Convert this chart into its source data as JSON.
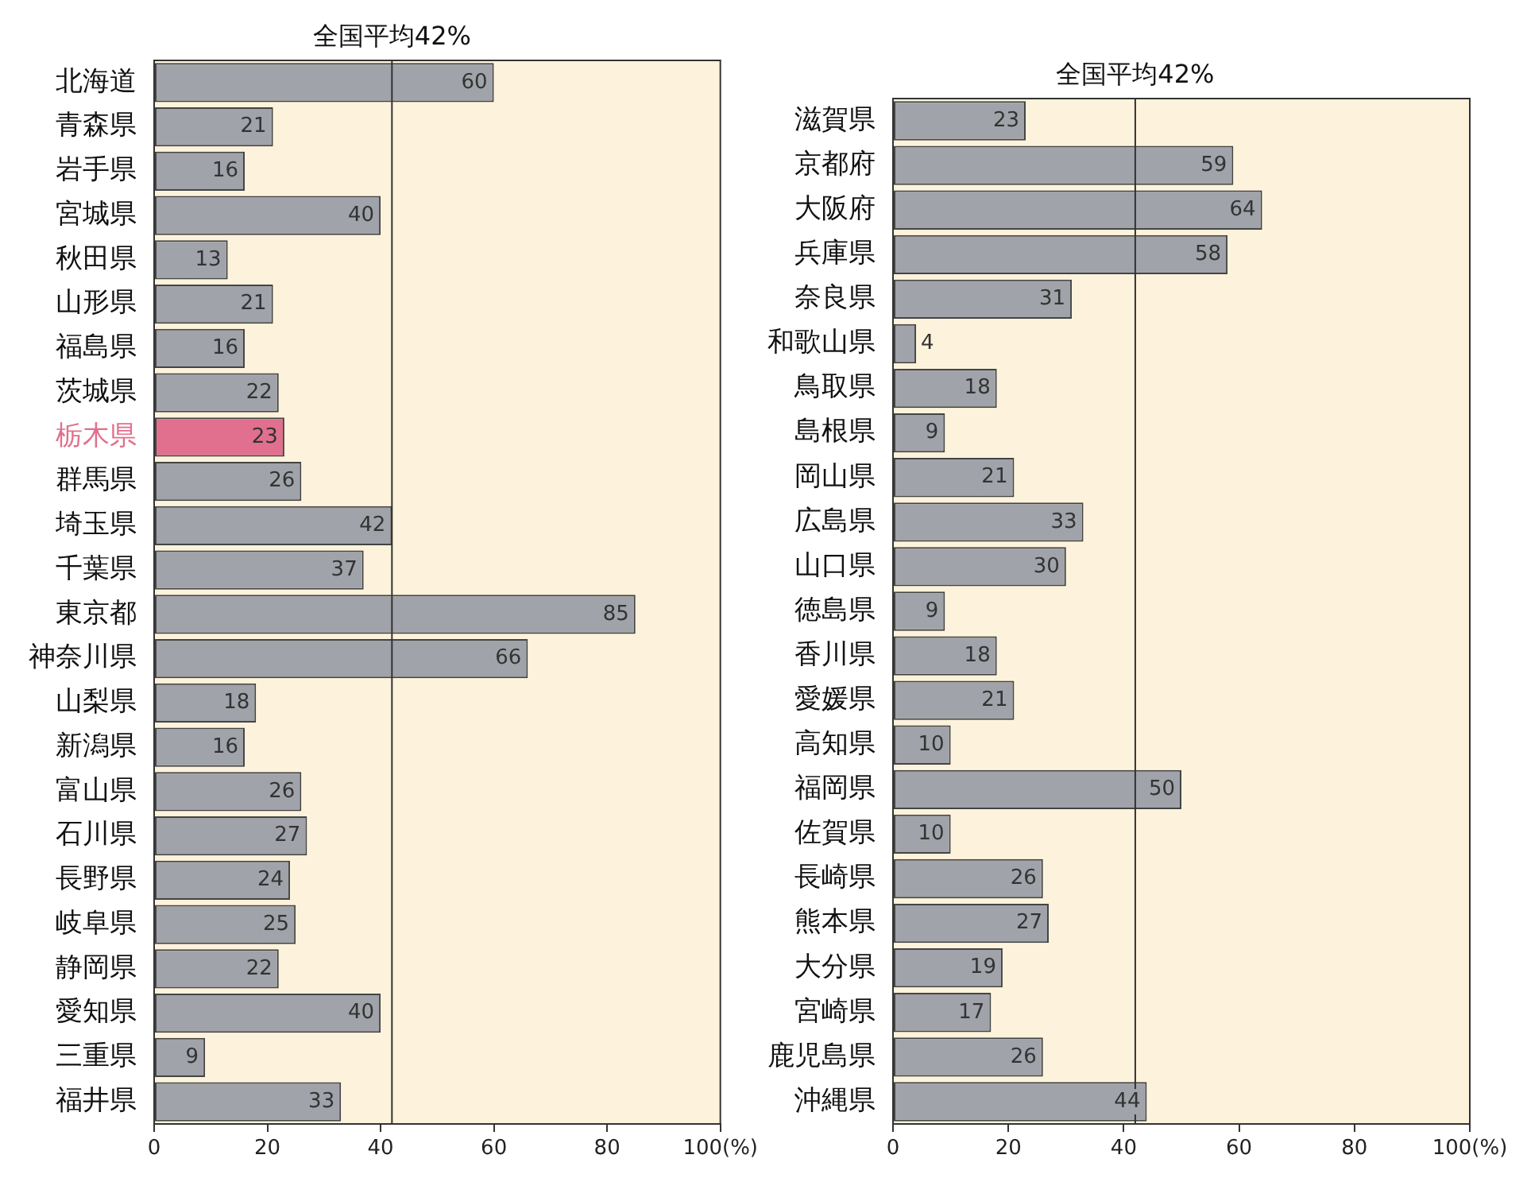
{
  "chart_data": [
    {
      "type": "bar",
      "orientation": "horizontal",
      "categories": [
        "北海道",
        "青森県",
        "岩手県",
        "宮城県",
        "秋田県",
        "山形県",
        "福島県",
        "茨城県",
        "栃木県",
        "群馬県",
        "埼玉県",
        "千葉県",
        "東京都",
        "神奈川県",
        "山梨県",
        "新潟県",
        "富山県",
        "石川県",
        "長野県",
        "岐阜県",
        "静岡県",
        "愛知県",
        "三重県",
        "福井県"
      ],
      "values": [
        60,
        21,
        16,
        40,
        13,
        21,
        16,
        22,
        23,
        26,
        42,
        37,
        85,
        66,
        18,
        16,
        26,
        27,
        24,
        25,
        22,
        40,
        9,
        33
      ],
      "color": "#a0a3a9",
      "colors": [
        "#a0a3a9",
        "#a0a3a9",
        "#a0a3a9",
        "#a0a3a9",
        "#a0a3a9",
        "#a0a3a9",
        "#a0a3a9",
        "#a0a3a9",
        "#e0708e",
        "#a0a3a9",
        "#a0a3a9",
        "#a0a3a9",
        "#a0a3a9",
        "#a0a3a9",
        "#a0a3a9",
        "#a0a3a9",
        "#a0a3a9",
        "#a0a3a9",
        "#a0a3a9",
        "#a0a3a9",
        "#a0a3a9",
        "#a0a3a9",
        "#a0a3a9",
        "#a0a3a9"
      ],
      "xlim": [
        0,
        100
      ],
      "xticks": [
        0,
        20,
        40,
        60,
        80,
        {
          "value": 100,
          "label": "100(%)"
        }
      ],
      "ref_lines": [
        {
          "axis": "x",
          "value": 42,
          "label": "全国平均42%",
          "color": "#333333"
        }
      ],
      "data_labels": true,
      "grid": false,
      "legend": false
    },
    {
      "type": "bar",
      "orientation": "horizontal",
      "categories": [
        "滋賀県",
        "京都府",
        "大阪府",
        "兵庫県",
        "奈良県",
        "和歌山県",
        "鳥取県",
        "島根県",
        "岡山県",
        "広島県",
        "山口県",
        "徳島県",
        "香川県",
        "愛媛県",
        "高知県",
        "福岡県",
        "佐賀県",
        "長崎県",
        "熊本県",
        "大分県",
        "宮崎県",
        "鹿児島県",
        "沖縄県"
      ],
      "values": [
        23,
        59,
        64,
        58,
        31,
        4,
        18,
        9,
        21,
        33,
        30,
        9,
        18,
        21,
        10,
        50,
        10,
        26,
        27,
        19,
        17,
        26,
        44
      ],
      "color": "#a0a3a9",
      "xlim": [
        0,
        100
      ],
      "xticks": [
        0,
        20,
        40,
        60,
        80,
        {
          "value": 100,
          "label": "100(%)"
        }
      ],
      "ref_lines": [
        {
          "axis": "x",
          "value": 42,
          "label": "全国平均42%",
          "color": "#333333"
        }
      ],
      "data_labels": true,
      "grid": false,
      "legend": false
    }
  ]
}
